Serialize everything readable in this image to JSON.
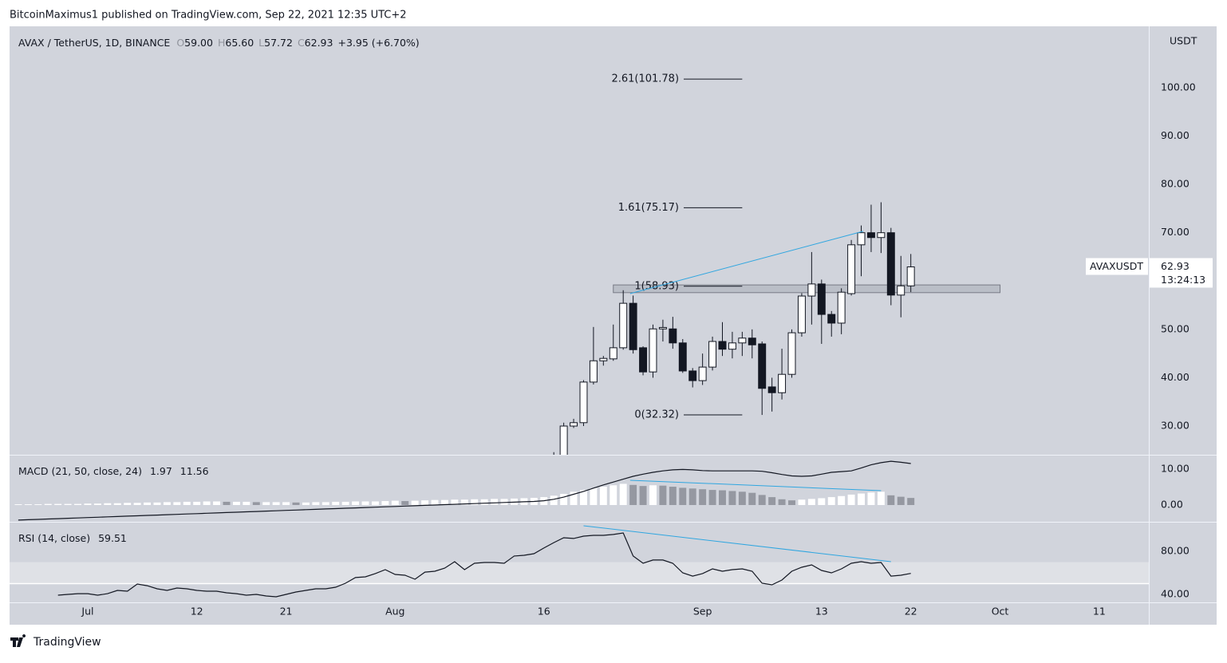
{
  "header": {
    "publisher": "BitcoinMaximus1 published on TradingView.com, Sep 22, 2021 12:35 UTC+2"
  },
  "footer": {
    "brand": "TradingView"
  },
  "chart_data": [
    {
      "type": "candlestick",
      "title": "AVAX / TetherUS, 1D, BINANCE",
      "ohlc_legend": [
        {
          "key": "O",
          "text": "59.00"
        },
        {
          "key": "H",
          "text": "65.60"
        },
        {
          "key": "L",
          "text": "57.72"
        },
        {
          "key": "C",
          "text": "62.93"
        }
      ],
      "change": "+3.95 (+6.70%)",
      "currency": "USDT",
      "symbol": "AVAXUSDT",
      "countdown": "13:24:13",
      "x": [
        47,
        48,
        49,
        50,
        51,
        52,
        53,
        54,
        55,
        56,
        57,
        58,
        59,
        60,
        61,
        62,
        63,
        64,
        65,
        66,
        67,
        68,
        69,
        70,
        71,
        72,
        73,
        74,
        75,
        76,
        77,
        78,
        79,
        80,
        81,
        82,
        83
      ],
      "open": [
        22,
        23.5,
        30,
        30.7,
        39.1,
        43.5,
        43.9,
        46.2,
        55.4,
        46.2,
        41.2,
        50.1,
        50.1,
        47.2,
        41.4,
        39.4,
        42.2,
        47.5,
        45.9,
        47.2,
        48.2,
        47,
        38.1,
        36.9,
        40.7,
        49.3,
        56.9,
        59.4,
        53.1,
        51.3,
        57.4,
        67.5,
        70,
        69,
        70,
        57.1,
        59
      ],
      "high": [
        24.6,
        30.7,
        31.5,
        39.5,
        50.5,
        44.5,
        51,
        58.1,
        57,
        46.5,
        51,
        52,
        52.6,
        48,
        42,
        45,
        48.5,
        51.5,
        49.5,
        49.5,
        50,
        47.5,
        40,
        46,
        50,
        57.5,
        66,
        60.3,
        53.8,
        58.5,
        68.5,
        71.5,
        75.8,
        76.3,
        71,
        65.2,
        65.6
      ],
      "low": [
        21,
        23,
        29.6,
        30,
        38.6,
        42.5,
        43.5,
        45.8,
        45,
        40.5,
        40,
        47.5,
        46,
        41,
        38,
        38.5,
        41.5,
        44.5,
        44,
        44.5,
        44,
        32.3,
        33,
        35.5,
        40,
        48.5,
        51,
        47,
        48.5,
        49,
        57,
        61,
        66,
        65.8,
        55,
        52.5,
        57.72
      ],
      "close": [
        23.5,
        30,
        30.7,
        39.1,
        43.5,
        44,
        46.2,
        55.4,
        45.8,
        41.2,
        50.1,
        50.4,
        47.2,
        41.4,
        39.4,
        42.2,
        47.5,
        45.9,
        47.2,
        48.2,
        46.8,
        37.8,
        36.9,
        40.7,
        49.3,
        56.9,
        59.4,
        53.1,
        51.3,
        57.7,
        67.5,
        70,
        69,
        70,
        57.1,
        59,
        62.93
      ],
      "up_color": "#ffffff",
      "down_color": "#131722",
      "xlim": [
        -7.88,
        107
      ],
      "xticks": [
        {
          "value": 0,
          "label": "Jul"
        },
        {
          "value": 11,
          "label": "12"
        },
        {
          "value": 20,
          "label": "21"
        },
        {
          "value": 31,
          "label": "Aug"
        },
        {
          "value": 46,
          "label": "16"
        },
        {
          "value": 62,
          "label": "Sep"
        },
        {
          "value": 74,
          "label": "13"
        },
        {
          "value": 83,
          "label": "22"
        },
        {
          "value": 92,
          "label": "Oct"
        },
        {
          "value": 102,
          "label": "11"
        }
      ],
      "ylim": [
        24.06,
        112.7
      ],
      "yticks": [
        {
          "value": 30,
          "label": "30.00"
        },
        {
          "value": 40,
          "label": "40.00"
        },
        {
          "value": 50,
          "label": "50.00"
        },
        {
          "value": 60,
          "label": "60.00"
        },
        {
          "value": 70,
          "label": "70.00"
        },
        {
          "value": 80,
          "label": "80.00"
        },
        {
          "value": 90,
          "label": "90.00"
        },
        {
          "value": 100,
          "label": "100.00"
        }
      ],
      "fib_levels": [
        {
          "label": "2.61(101.78)",
          "value": 101.78
        },
        {
          "label": "1.61(75.17)",
          "value": 75.17
        },
        {
          "label": "1(58.93)",
          "value": 58.93
        },
        {
          "label": "0(32.32)",
          "value": 32.32
        }
      ],
      "fib_x": [
        60.1,
        66
      ],
      "zone": {
        "x": [
          53,
          92
        ],
        "y": [
          57.6,
          59.2
        ]
      },
      "trendline": {
        "x": [
          54.7,
          78.2
        ],
        "y": [
          57.4,
          70.3
        ],
        "color": "#2fa6e0"
      }
    },
    {
      "type": "macd",
      "title": "MACD (21, 50, close, 24)",
      "x": [
        -7,
        -6,
        -5,
        -4,
        -3,
        -2,
        -1,
        0,
        1,
        2,
        3,
        4,
        5,
        6,
        7,
        8,
        9,
        10,
        11,
        12,
        13,
        14,
        15,
        16,
        17,
        18,
        19,
        20,
        21,
        22,
        23,
        24,
        25,
        26,
        27,
        28,
        29,
        30,
        31,
        32,
        33,
        34,
        35,
        36,
        37,
        38,
        39,
        40,
        41,
        42,
        43,
        44,
        45,
        46,
        47,
        48,
        49,
        50,
        51,
        52,
        53,
        54,
        55,
        56,
        57,
        58,
        59,
        60,
        61,
        62,
        63,
        64,
        65,
        66,
        67,
        68,
        69,
        70,
        71,
        72,
        73,
        74,
        75,
        76,
        77,
        78,
        79,
        80,
        81,
        82,
        83
      ],
      "histogram": [
        0.2,
        0.2,
        0.2,
        0.3,
        0.3,
        0.3,
        0.3,
        0.4,
        0.4,
        0.5,
        0.5,
        0.6,
        0.6,
        0.7,
        0.7,
        0.8,
        0.8,
        0.9,
        0.9,
        1.0,
        1.0,
        0.9,
        0.9,
        0.9,
        0.8,
        0.8,
        0.8,
        0.8,
        0.7,
        0.7,
        0.8,
        0.8,
        0.9,
        0.9,
        1.0,
        1.0,
        1.0,
        1.1,
        1.2,
        1.1,
        1.2,
        1.3,
        1.4,
        1.4,
        1.5,
        1.5,
        1.6,
        1.6,
        1.7,
        1.7,
        1.8,
        1.9,
        2.0,
        2.2,
        2.6,
        3.1,
        3.7,
        4.2,
        4.7,
        5.1,
        5.5,
        5.9,
        5.6,
        5.3,
        5.5,
        5.4,
        5.1,
        4.8,
        4.6,
        4.4,
        4.2,
        4.1,
        3.9,
        3.7,
        3.4,
        2.8,
        2.2,
        1.6,
        1.3,
        1.5,
        1.7,
        1.9,
        2.2,
        2.5,
        2.9,
        3.2,
        3.5,
        3.7,
        2.7,
        2.3,
        1.97
      ],
      "macd": [
        -4.2,
        -4.1,
        -4.0,
        -3.9,
        -3.8,
        -3.7,
        -3.6,
        -3.5,
        -3.4,
        -3.3,
        -3.2,
        -3.1,
        -3.0,
        -2.9,
        -2.8,
        -2.7,
        -2.6,
        -2.5,
        -2.4,
        -2.3,
        -2.2,
        -2.1,
        -2.0,
        -1.9,
        -1.8,
        -1.7,
        -1.6,
        -1.5,
        -1.4,
        -1.3,
        -1.2,
        -1.1,
        -1.0,
        -0.9,
        -0.8,
        -0.7,
        -0.6,
        -0.5,
        -0.4,
        -0.3,
        -0.2,
        -0.1,
        0.0,
        0.1,
        0.2,
        0.3,
        0.4,
        0.5,
        0.6,
        0.7,
        0.8,
        0.9,
        1.0,
        1.2,
        1.6,
        2.2,
        3.0,
        3.8,
        4.7,
        5.6,
        6.4,
        7.2,
        8.0,
        8.6,
        9.1,
        9.5,
        9.8,
        9.9,
        9.8,
        9.6,
        9.5,
        9.5,
        9.5,
        9.5,
        9.5,
        9.4,
        9.0,
        8.5,
        8.1,
        8.0,
        8.1,
        8.6,
        9.1,
        9.3,
        9.5,
        10.3,
        11.2,
        11.8,
        12.2,
        11.9,
        11.56
      ],
      "line_color": "#131722",
      "rising_color": "#ffffff",
      "falling_color": "#9598a1",
      "ylim": [
        -4.67,
        14
      ],
      "yticks": [
        {
          "value": 0,
          "label": "0.00"
        },
        {
          "value": 10,
          "label": "10.00"
        }
      ],
      "trendline": {
        "x": [
          54.7,
          80
        ],
        "y": [
          6.9,
          4.0
        ],
        "color": "#2fa6e0"
      }
    },
    {
      "type": "rsi",
      "title": "RSI (14, close)",
      "x": [
        -7,
        -6,
        -5,
        -4,
        -3,
        -2,
        -1,
        0,
        1,
        2,
        3,
        4,
        5,
        6,
        7,
        8,
        9,
        10,
        11,
        12,
        13,
        14,
        15,
        16,
        17,
        18,
        19,
        20,
        21,
        22,
        23,
        24,
        25,
        26,
        27,
        28,
        29,
        30,
        31,
        32,
        33,
        34,
        35,
        36,
        37,
        38,
        39,
        40,
        41,
        42,
        43,
        44,
        45,
        46,
        47,
        48,
        49,
        50,
        51,
        52,
        53,
        54,
        55,
        56,
        57,
        58,
        59,
        60,
        61,
        62,
        63,
        64,
        65,
        66,
        67,
        68,
        69,
        70,
        71,
        72,
        73,
        74,
        75,
        76,
        77,
        78,
        79,
        80,
        81,
        82,
        83
      ],
      "values": [
        null,
        null,
        null,
        null,
        39.3,
        40.0,
        40.7,
        40.7,
        39.3,
        40.7,
        43.7,
        43.0,
        49.6,
        48.1,
        45.2,
        43.7,
        45.9,
        45.2,
        43.7,
        43.0,
        43.0,
        41.5,
        40.7,
        39.3,
        40.0,
        38.5,
        37.8,
        40.0,
        42.2,
        43.7,
        45.2,
        45.2,
        46.7,
        50.4,
        55.6,
        56.3,
        59.3,
        63.0,
        58.5,
        57.8,
        54.1,
        60.7,
        61.5,
        64.4,
        70.4,
        63.0,
        68.9,
        69.6,
        69.6,
        68.9,
        75.6,
        76.3,
        77.8,
        83.0,
        88.1,
        92.6,
        91.9,
        94.1,
        94.8,
        94.8,
        95.6,
        97.0,
        75.6,
        68.9,
        71.9,
        71.9,
        68.9,
        60.0,
        57.0,
        59.3,
        63.7,
        61.5,
        63.0,
        63.7,
        61.5,
        50.4,
        48.9,
        53.3,
        61.5,
        65.2,
        67.4,
        62.2,
        60.0,
        63.7,
        68.9,
        70.4,
        68.9,
        69.6,
        57.0,
        57.8,
        59.51
      ],
      "color": "#131722",
      "band": [
        50,
        70
      ],
      "ylim": [
        32.6,
        107.4
      ],
      "yticks": [
        {
          "value": 40,
          "label": "40.00"
        },
        {
          "value": 80,
          "label": "80.00"
        }
      ],
      "trendline": {
        "x": [
          50,
          81
        ],
        "y": [
          103.7,
          70.4
        ],
        "color": "#2fa6e0"
      }
    }
  ]
}
